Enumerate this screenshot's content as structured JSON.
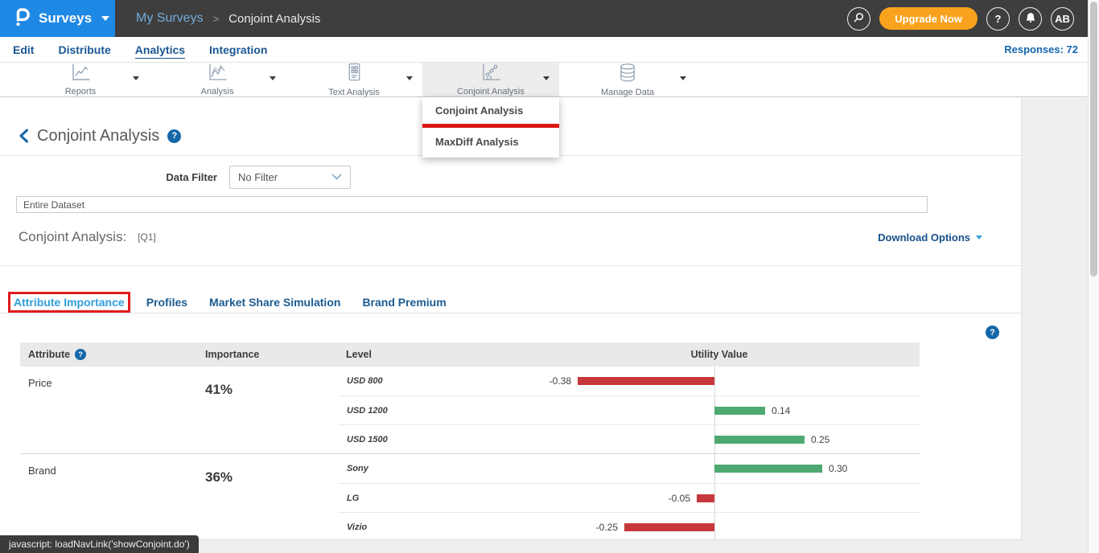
{
  "ui": {
    "help_glyph": "?"
  },
  "topbar": {
    "product": "Surveys",
    "breadcrumb": [
      "My Surveys",
      "Conjoint Analysis"
    ],
    "breadcrumb_sep": ">",
    "upgrade_label": "Upgrade Now",
    "avatar": "AB"
  },
  "nav": {
    "items": [
      "Edit",
      "Distribute",
      "Analytics",
      "Integration"
    ],
    "active": "Analytics",
    "responses_label": "Responses: 72"
  },
  "toolbar": {
    "items": [
      {
        "label": "Reports",
        "icon": "reports-chart-icon"
      },
      {
        "label": "Analysis",
        "icon": "analysis-chart-icon"
      },
      {
        "label": "Text Analysis",
        "icon": "text-analysis-icon"
      },
      {
        "label": "Conjoint Analysis",
        "icon": "conjoint-chart-icon",
        "active": true
      },
      {
        "label": "Manage Data",
        "icon": "database-icon"
      }
    ],
    "menu": {
      "items": [
        "Conjoint Analysis",
        "MaxDiff Analysis"
      ],
      "annotated_item": "Conjoint Analysis"
    }
  },
  "content": {
    "back_title": "Conjoint Analysis",
    "data_filter": {
      "label": "Data Filter",
      "value": "No Filter"
    },
    "dataset_value": "Entire Dataset",
    "question": {
      "title": "Conjoint Analysis:",
      "code": "[Q1]"
    },
    "download_label": "Download Options",
    "tabs": [
      "Attribute Importance",
      "Profiles",
      "Market Share Simulation",
      "Brand Premium"
    ],
    "active_tab": "Attribute Importance"
  },
  "chart_data": {
    "type": "bar",
    "title": "Conjoint Analysis [Q1] — Attribute Importance and Utility Values",
    "columns": [
      "Attribute",
      "Importance",
      "Level",
      "Utility Value"
    ],
    "groups": [
      {
        "attribute": "Price",
        "importance": "41%",
        "levels": [
          {
            "name": "USD 800",
            "utility": -0.38
          },
          {
            "name": "USD 1200",
            "utility": 0.14
          },
          {
            "name": "USD 1500",
            "utility": 0.25
          }
        ]
      },
      {
        "attribute": "Brand",
        "importance": "36%",
        "levels": [
          {
            "name": "Sony",
            "utility": 0.3
          },
          {
            "name": "LG",
            "utility": -0.05
          },
          {
            "name": "Vizio",
            "utility": -0.25
          }
        ]
      }
    ],
    "colors": {
      "positive": "#4ea971",
      "negative": "#c7383d",
      "annotation": "#e11b1c"
    },
    "layout_hint": {
      "zero_axis": true,
      "bar_orientation": "horizontal"
    }
  },
  "statusbar": {
    "text": "javascript: loadNavLink('showConjoint.do')"
  }
}
